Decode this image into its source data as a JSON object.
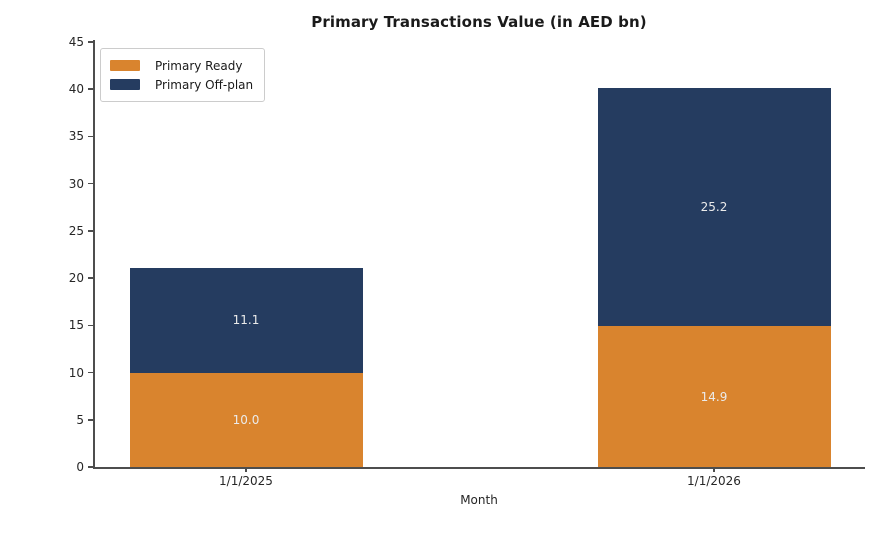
{
  "title": "Primary Transactions Value (in AED bn)",
  "chart_data": {
    "type": "bar",
    "stacked": true,
    "title": "Primary Transactions Value (in AED bn)",
    "categories": [
      "1/1/2025",
      "1/1/2026"
    ],
    "series": [
      {
        "name": "Primary Ready",
        "color": "#d9842e",
        "values": [
          10.0,
          14.9
        ]
      },
      {
        "name": "Primary Off-plan",
        "color": "#253c60",
        "values": [
          11.1,
          25.2
        ]
      }
    ],
    "bar_labels": [
      [
        "10.0",
        "14.9"
      ],
      [
        "11.1",
        "25.2"
      ]
    ],
    "xlabel": "Month",
    "ylabel": "",
    "ylim": [
      0,
      45
    ],
    "yticks": [
      0,
      5,
      10,
      15,
      20,
      25,
      30,
      35,
      40,
      45
    ],
    "grid": false,
    "legend_position": "upper-left",
    "bar_label_color": "#ebebeb",
    "axis_color": "#4d4d4d"
  }
}
